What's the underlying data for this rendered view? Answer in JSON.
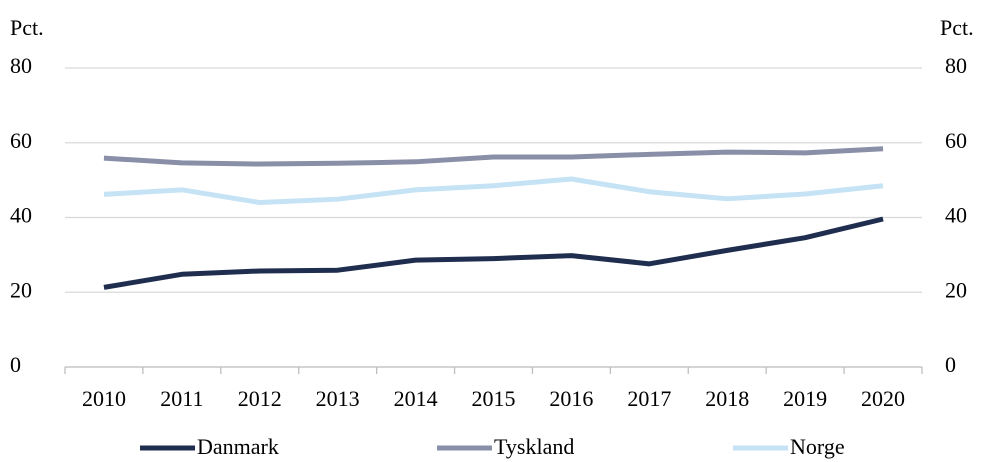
{
  "chart_data": {
    "type": "line",
    "y_label": "Pct.",
    "y2_label": "Pct.",
    "x": [
      "2010",
      "2011",
      "2012",
      "2013",
      "2014",
      "2015",
      "2016",
      "2017",
      "2018",
      "2019",
      "2020"
    ],
    "series": [
      {
        "name": "Danmark",
        "color": "#1f2d4e",
        "values": [
          21.3,
          24.8,
          25.7,
          25.9,
          28.6,
          29.0,
          29.8,
          27.6,
          31.2,
          34.6,
          39.6
        ]
      },
      {
        "name": "Tyskland",
        "color": "#8a8fa8",
        "values": [
          55.9,
          54.6,
          54.3,
          54.5,
          54.9,
          56.2,
          56.2,
          56.9,
          57.5,
          57.3,
          58.4
        ]
      },
      {
        "name": "Norge",
        "color": "#c5e3f5",
        "values": [
          46.2,
          47.4,
          44.0,
          44.9,
          47.4,
          48.5,
          50.3,
          46.9,
          45.0,
          46.3,
          48.5
        ]
      }
    ],
    "ylim": [
      0,
      80
    ],
    "yticks": [
      0,
      20,
      40,
      60,
      80
    ],
    "y2lim": [
      0,
      80
    ],
    "y2ticks": [
      0,
      20,
      40,
      60,
      80
    ],
    "grid": true,
    "legend": "bottom"
  }
}
